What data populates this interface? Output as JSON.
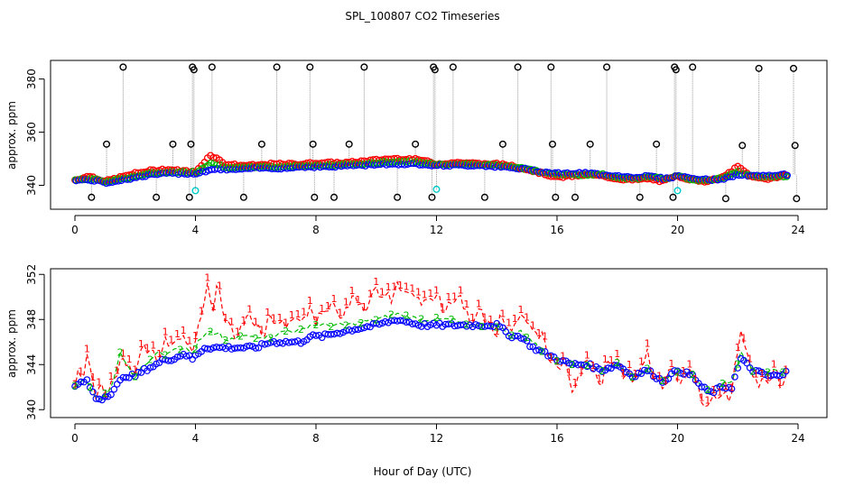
{
  "figure": {
    "title": "SPL_100807  CO2 Timeseries",
    "xlabel": "Hour of Day (UTC)"
  },
  "colors": {
    "series1": "#ff0000",
    "series2": "#00bb00",
    "series3": "#0000ff",
    "outlier_black": "#000000",
    "outlier_cyan": "#00cccc",
    "droplines": "#9a9a9a"
  },
  "chart_data": [
    {
      "type": "scatter",
      "panel": "top",
      "ylabel": "approx. ppm",
      "xlim": [
        0,
        24
      ],
      "ylim": [
        331,
        387
      ],
      "x_ticks": [
        0,
        4,
        8,
        12,
        16,
        20,
        24
      ],
      "y_ticks": [
        340,
        360,
        380
      ],
      "grid": false,
      "series_key": [
        {
          "symbol": "o",
          "color": "red"
        },
        {
          "symbol": "o",
          "color": "green"
        },
        {
          "symbol": "o",
          "color": "blue"
        }
      ],
      "series_values_at_hours": {
        "x": [
          0,
          0.5,
          1,
          1.5,
          2,
          2.5,
          3,
          3.5,
          4,
          4.5,
          5,
          5.5,
          6,
          6.5,
          7,
          7.5,
          8,
          8.5,
          9,
          9.5,
          10,
          10.5,
          11,
          11.5,
          12,
          12.5,
          13,
          13.5,
          14,
          14.5,
          15,
          15.5,
          16,
          16.5,
          17,
          17.5,
          18,
          18.5,
          19,
          19.5,
          20,
          20.5,
          21,
          21.5,
          22,
          22.5,
          23,
          23.5
        ],
        "red": [
          342,
          343.5,
          341.5,
          343,
          344.5,
          345.5,
          346,
          345.5,
          345,
          351.5,
          348,
          347.5,
          347.5,
          348,
          348,
          348,
          348.5,
          348.5,
          348.5,
          349,
          349.5,
          350,
          350,
          349.5,
          348,
          348.5,
          348.5,
          348,
          348,
          347.5,
          346,
          344.5,
          343,
          343.5,
          344,
          343.5,
          342.5,
          342,
          342.5,
          341.5,
          343.5,
          342,
          341.5,
          343,
          347,
          343,
          342.5,
          343.5
        ],
        "green": [
          342,
          342.5,
          341.5,
          342.5,
          343.5,
          344.5,
          345,
          345,
          345,
          348.5,
          347,
          346.5,
          347,
          347,
          347,
          347.5,
          347.5,
          347.5,
          348,
          348,
          348.5,
          349,
          349,
          348.5,
          348,
          348,
          348,
          348,
          347.5,
          347,
          346,
          345,
          344,
          344,
          344,
          344,
          343,
          342.5,
          343,
          342.5,
          343.5,
          342,
          342,
          343,
          345,
          343.5,
          343,
          343.5
        ],
        "blue": [
          342,
          342,
          341,
          342,
          343,
          344,
          344.5,
          344.5,
          344.5,
          346,
          346,
          346,
          346.5,
          346.5,
          346.5,
          347,
          347,
          347,
          347.5,
          347.5,
          348,
          348,
          348,
          348,
          347.5,
          347.5,
          347.5,
          347.5,
          347,
          346.5,
          346,
          345,
          344.5,
          344.5,
          344.5,
          344,
          343.5,
          343,
          343.5,
          342.5,
          343.5,
          342.5,
          342,
          342.5,
          344,
          343.5,
          343.5,
          344
        ]
      },
      "outliers_black": [
        {
          "x": 0.55,
          "y": 335.5
        },
        {
          "x": 1.05,
          "y": 355.5
        },
        {
          "x": 1.6,
          "y": 384.5
        },
        {
          "x": 2.7,
          "y": 335.5
        },
        {
          "x": 3.25,
          "y": 355.5
        },
        {
          "x": 3.8,
          "y": 335.5
        },
        {
          "x": 3.85,
          "y": 355.5
        },
        {
          "x": 3.9,
          "y": 384.5
        },
        {
          "x": 3.95,
          "y": 383.5
        },
        {
          "x": 4.55,
          "y": 384.5
        },
        {
          "x": 5.6,
          "y": 335.5
        },
        {
          "x": 6.2,
          "y": 355.5
        },
        {
          "x": 6.7,
          "y": 384.5
        },
        {
          "x": 7.8,
          "y": 384.5
        },
        {
          "x": 7.9,
          "y": 355.5
        },
        {
          "x": 7.95,
          "y": 335.5
        },
        {
          "x": 8.6,
          "y": 335.5
        },
        {
          "x": 9.1,
          "y": 355.5
        },
        {
          "x": 9.6,
          "y": 384.5
        },
        {
          "x": 10.7,
          "y": 335.5
        },
        {
          "x": 11.3,
          "y": 355.5
        },
        {
          "x": 11.85,
          "y": 335.5
        },
        {
          "x": 11.9,
          "y": 384.5
        },
        {
          "x": 11.95,
          "y": 383.5
        },
        {
          "x": 12.55,
          "y": 384.5
        },
        {
          "x": 13.6,
          "y": 335.5
        },
        {
          "x": 14.2,
          "y": 355.5
        },
        {
          "x": 14.7,
          "y": 384.5
        },
        {
          "x": 15.8,
          "y": 384.5
        },
        {
          "x": 15.85,
          "y": 355.5
        },
        {
          "x": 15.95,
          "y": 335.5
        },
        {
          "x": 16.6,
          "y": 335.5
        },
        {
          "x": 17.1,
          "y": 355.5
        },
        {
          "x": 17.65,
          "y": 384.5
        },
        {
          "x": 18.75,
          "y": 335.5
        },
        {
          "x": 19.3,
          "y": 355.5
        },
        {
          "x": 19.85,
          "y": 335.5
        },
        {
          "x": 19.9,
          "y": 384.5
        },
        {
          "x": 19.95,
          "y": 383.5
        },
        {
          "x": 20.5,
          "y": 384.5
        },
        {
          "x": 21.6,
          "y": 335.0
        },
        {
          "x": 22.15,
          "y": 355.0
        },
        {
          "x": 22.7,
          "y": 384.0
        },
        {
          "x": 23.85,
          "y": 384.0
        },
        {
          "x": 23.9,
          "y": 355.0
        },
        {
          "x": 23.95,
          "y": 335.0
        }
      ],
      "outliers_cyan": [
        {
          "x": 4.0,
          "y": 338.0
        },
        {
          "x": 12.0,
          "y": 338.5
        },
        {
          "x": 20.0,
          "y": 338.0
        }
      ]
    },
    {
      "type": "line",
      "panel": "bottom",
      "ylabel": "approx. ppm",
      "xlim": [
        0,
        24
      ],
      "ylim": [
        339.3,
        352.5
      ],
      "x_ticks": [
        0,
        4,
        8,
        12,
        16,
        20,
        24
      ],
      "y_ticks": [
        340,
        344,
        348,
        352
      ],
      "grid": false,
      "series": [
        {
          "symbol": "1",
          "color": "red",
          "style": "dashed"
        },
        {
          "symbol": "2",
          "color": "green",
          "style": "dashed"
        },
        {
          "symbol": "3",
          "color": "blue",
          "style": "circles"
        }
      ],
      "anchors": {
        "x": [
          0,
          0.25,
          0.4,
          0.7,
          0.9,
          1.2,
          1.5,
          1.7,
          2,
          2.3,
          2.7,
          3,
          3.3,
          3.6,
          3.9,
          4.1,
          4.3,
          4.45,
          4.6,
          4.75,
          5,
          5.5,
          6,
          6.5,
          7,
          7.5,
          7.8,
          8.2,
          9,
          10,
          10.7,
          11.5,
          12,
          12.5,
          13,
          13.5,
          14,
          14.5,
          14.8,
          15.2,
          15.6,
          16,
          16.5,
          17,
          17.5,
          18,
          18.5,
          19,
          19.5,
          20,
          20.5,
          20.8,
          21.1,
          21.5,
          21.8,
          22.1,
          22.5,
          23,
          23.5,
          23.8
        ],
        "red": [
          342,
          343.5,
          345,
          341,
          341.5,
          342.5,
          343.5,
          344,
          344,
          345,
          345.5,
          345.5,
          346,
          346.5,
          345,
          347.5,
          349,
          351,
          349.5,
          351.5,
          347,
          347.5,
          347.5,
          347.5,
          348,
          348,
          348.5,
          348.5,
          349,
          350,
          350.5,
          350,
          349.5,
          349.5,
          349,
          348,
          347.5,
          347,
          348.5,
          347,
          346,
          344,
          342.5,
          343.5,
          343,
          344.5,
          342.5,
          344.5,
          342,
          343.5,
          342.5,
          341.5,
          340,
          341.5,
          341.5,
          347,
          343,
          342.5,
          343,
          343.5
        ],
        "green": [
          342,
          342.5,
          342.5,
          341,
          341,
          342,
          345,
          344,
          343,
          344,
          345,
          345,
          345.5,
          345.5,
          345,
          346,
          346.5,
          347,
          346.5,
          347,
          346,
          346.5,
          346.5,
          346.5,
          347,
          347,
          347.5,
          347.5,
          347.5,
          348,
          348.5,
          348,
          348,
          348,
          347.5,
          347.5,
          347.5,
          346.5,
          347,
          346,
          345,
          344.5,
          344,
          344,
          343.5,
          344,
          343,
          343.5,
          342.5,
          343.5,
          343,
          342,
          341.5,
          342.5,
          342.5,
          345,
          343.5,
          343.5,
          343.5,
          344
        ],
        "blue": [
          342,
          342.5,
          342.5,
          341,
          341,
          341.5,
          342.5,
          343,
          343,
          343.5,
          344,
          344.5,
          344.5,
          345,
          344.5,
          345,
          345.5,
          345.5,
          345.5,
          345.5,
          345.5,
          345.5,
          345.5,
          346,
          346,
          346,
          346.5,
          346.5,
          347,
          347.5,
          348,
          347.5,
          347.5,
          347.5,
          347.5,
          347.5,
          347.5,
          346.5,
          346.5,
          345.5,
          345,
          344.5,
          344,
          344,
          343.5,
          344,
          343,
          343.5,
          342.5,
          343.5,
          343,
          342,
          341.5,
          342,
          342,
          344.5,
          343.5,
          343,
          343,
          344
        ]
      }
    }
  ]
}
